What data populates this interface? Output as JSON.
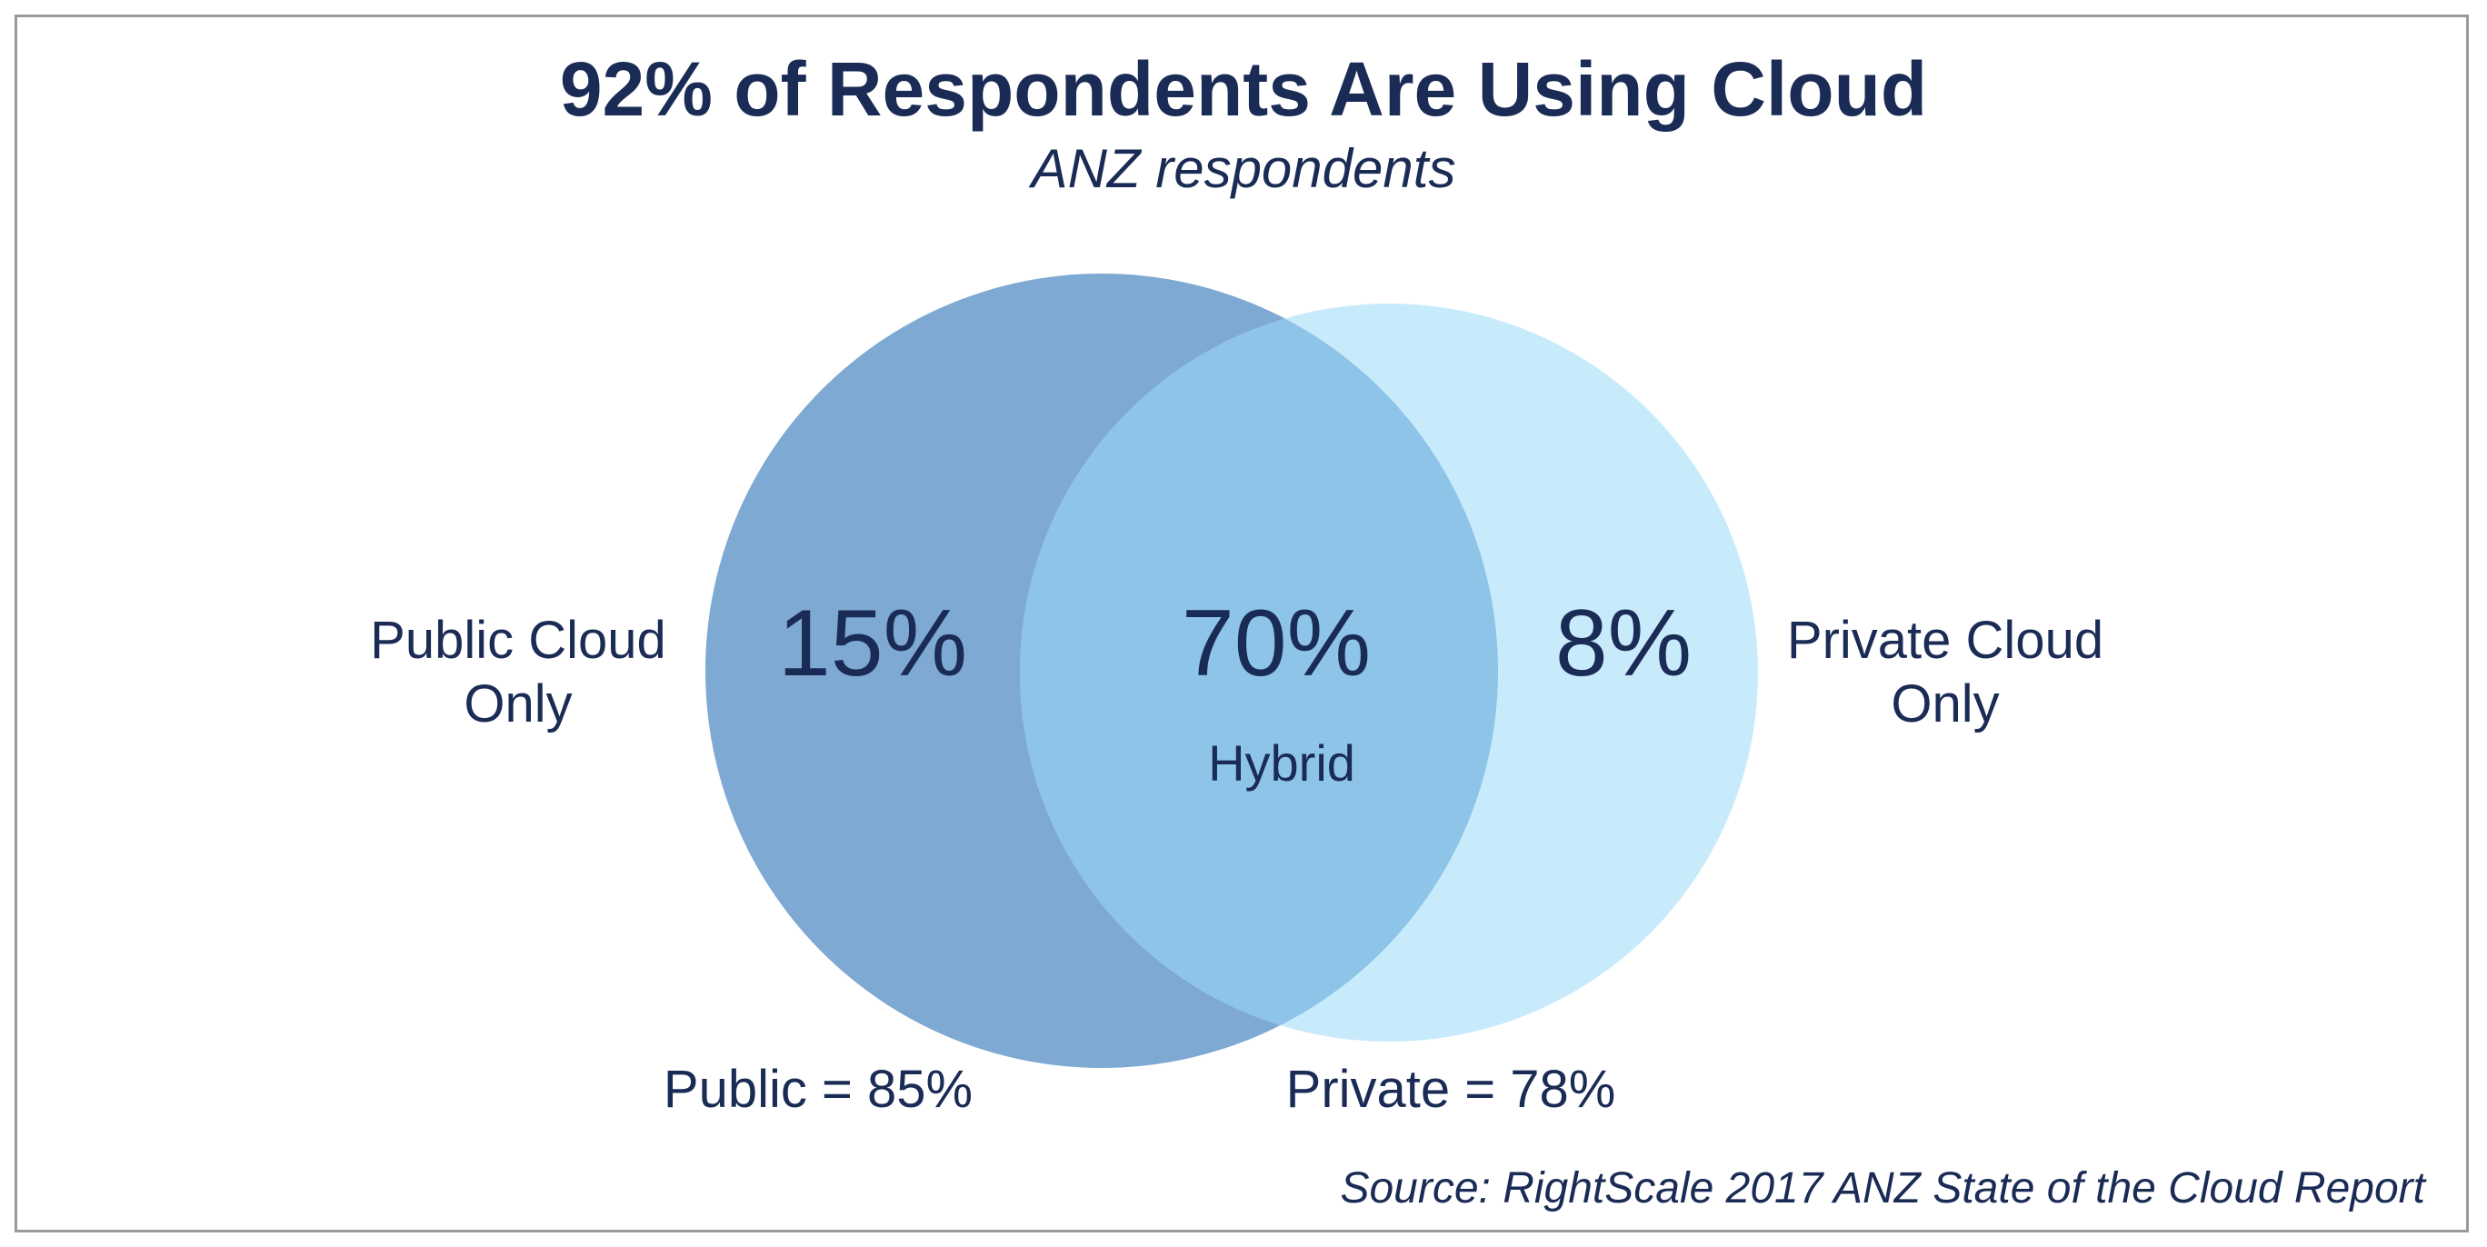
{
  "title": "92% of Respondents Are Using Cloud",
  "subtitle": "ANZ respondents",
  "venn": {
    "sets": [
      {
        "name": "Public",
        "color": "#7ea9d2",
        "total_label": "Public = 85%",
        "total_value": 85,
        "only_label_line1": "Public Cloud",
        "only_label_line2": "Only",
        "only_value": 15,
        "only_pct_label": "15%"
      },
      {
        "name": "Private",
        "color": "#c8ebfb",
        "total_label": "Private = 78%",
        "total_value": 78,
        "only_label_line1": "Private Cloud",
        "only_label_line2": "Only",
        "only_value": 8,
        "only_pct_label": "8%"
      }
    ],
    "intersection": {
      "label": "Hybrid",
      "value": 70,
      "pct_label": "70%",
      "color": "#8ec4e8"
    }
  },
  "source": "Source: RightScale 2017 ANZ State of the Cloud Report"
}
